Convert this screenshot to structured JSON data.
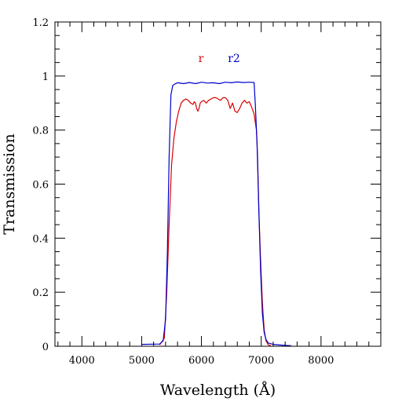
{
  "chart_data": {
    "type": "line",
    "title": "",
    "xlabel": "Wavelength (Å)",
    "ylabel": "Transmission",
    "xlim": [
      3550,
      9000
    ],
    "ylim": [
      0,
      1.2
    ],
    "x_ticks": [
      4000,
      5000,
      6000,
      7000,
      8000
    ],
    "y_ticks": [
      0,
      0.2,
      0.4,
      0.6,
      0.8,
      1,
      1.2
    ],
    "y_tick_labels": [
      "0",
      "0.2",
      "0.4",
      "0.6",
      "0.8",
      "1",
      "1.2"
    ],
    "grid": false,
    "legend_placement": "top-center",
    "series": [
      {
        "name": "r",
        "color": "#dd0000",
        "x": [
          5300,
          5380,
          5420,
          5460,
          5500,
          5540,
          5580,
          5620,
          5660,
          5700,
          5740,
          5780,
          5820,
          5860,
          5880,
          5900,
          5920,
          5940,
          5960,
          5980,
          6000,
          6040,
          6080,
          6120,
          6160,
          6200,
          6240,
          6280,
          6320,
          6360,
          6400,
          6440,
          6480,
          6520,
          6560,
          6600,
          6640,
          6680,
          6720,
          6760,
          6800,
          6840,
          6880,
          6920,
          6940,
          6960,
          6990,
          7020,
          7050,
          7080,
          7120,
          7160
        ],
        "y": [
          0.005,
          0.03,
          0.2,
          0.45,
          0.67,
          0.77,
          0.83,
          0.87,
          0.9,
          0.91,
          0.915,
          0.91,
          0.9,
          0.895,
          0.905,
          0.9,
          0.88,
          0.87,
          0.88,
          0.9,
          0.905,
          0.91,
          0.9,
          0.91,
          0.915,
          0.92,
          0.92,
          0.915,
          0.91,
          0.92,
          0.92,
          0.91,
          0.88,
          0.9,
          0.87,
          0.865,
          0.88,
          0.9,
          0.91,
          0.9,
          0.905,
          0.885,
          0.86,
          0.8,
          0.7,
          0.5,
          0.32,
          0.16,
          0.06,
          0.02,
          0.005,
          0.002
        ]
      },
      {
        "name": "r2",
        "color": "#0000cc",
        "x": [
          5000,
          5300,
          5360,
          5400,
          5430,
          5460,
          5490,
          5520,
          5550,
          5600,
          5700,
          5800,
          5900,
          6000,
          6100,
          6200,
          6300,
          6400,
          6500,
          6600,
          6700,
          6800,
          6880,
          6900,
          6930,
          6960,
          6990,
          7020,
          7050,
          7080,
          7120,
          7200,
          7350,
          7500
        ],
        "y": [
          0.007,
          0.008,
          0.02,
          0.1,
          0.35,
          0.7,
          0.93,
          0.965,
          0.97,
          0.975,
          0.972,
          0.976,
          0.972,
          0.977,
          0.974,
          0.975,
          0.972,
          0.977,
          0.975,
          0.978,
          0.976,
          0.977,
          0.976,
          0.9,
          0.75,
          0.5,
          0.28,
          0.12,
          0.05,
          0.025,
          0.012,
          0.007,
          0.004,
          0.002
        ]
      }
    ]
  }
}
